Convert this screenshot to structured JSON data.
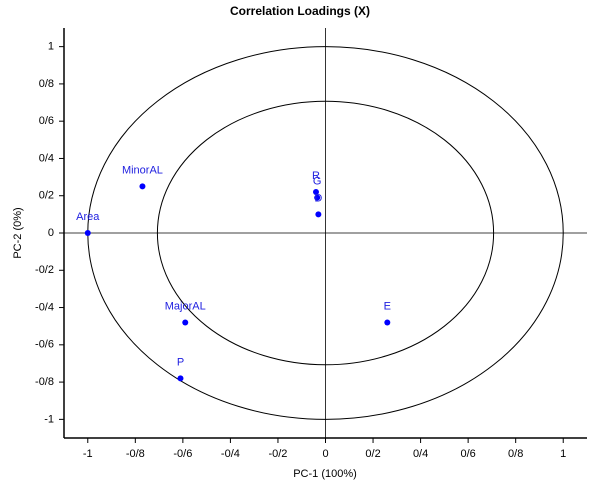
{
  "chart_data": {
    "type": "scatter",
    "title": "Correlation Loadings (X)",
    "x_label": "PC-1 (100%)",
    "y_label": "PC-2 (0%)",
    "xlim": [
      -1.1,
      1.1
    ],
    "ylim": [
      -1.1,
      1.1
    ],
    "xticks": [
      -1,
      {
        "value": -0.8,
        "label": "-0/8"
      },
      {
        "value": -0.6,
        "label": "-0/6"
      },
      {
        "value": -0.4,
        "label": "-0/4"
      },
      {
        "value": -0.2,
        "label": "-0/2"
      },
      0,
      {
        "value": 0.2,
        "label": "0/2"
      },
      {
        "value": 0.4,
        "label": "0/4"
      },
      {
        "value": 0.6,
        "label": "0/6"
      },
      {
        "value": 0.8,
        "label": "0/8"
      },
      1
    ],
    "yticks": [
      -1,
      {
        "value": -0.8,
        "label": "-0/8"
      },
      {
        "value": -0.6,
        "label": "-0/6"
      },
      {
        "value": -0.4,
        "label": "-0/4"
      },
      {
        "value": -0.2,
        "label": "-0/2"
      },
      0,
      {
        "value": 0.2,
        "label": "0/2"
      },
      {
        "value": 0.4,
        "label": "0/4"
      },
      {
        "value": 0.6,
        "label": "0/6"
      },
      {
        "value": 0.8,
        "label": "0/8"
      },
      1
    ],
    "point_labels": [
      "Area",
      "MinorAL",
      "MajorAL",
      "P",
      "E",
      "R",
      "G",
      "D"
    ],
    "x": [
      -1,
      -0.77,
      -0.59,
      -0.61,
      0.26,
      -0.04,
      -0.035,
      -0.03
    ],
    "series": [
      {
        "color": "#0000ff",
        "values": [
          0,
          0.25,
          -0.48,
          -0.78,
          -0.48,
          0.22,
          0.19,
          0.1
        ]
      }
    ]
  }
}
